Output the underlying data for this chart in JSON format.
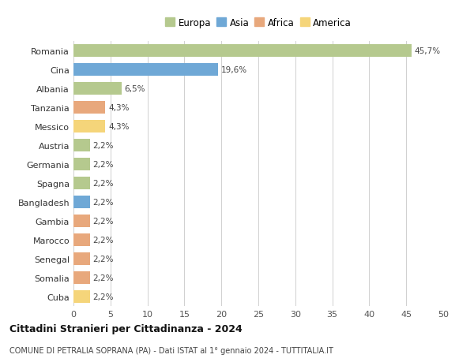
{
  "countries": [
    "Romania",
    "Cina",
    "Albania",
    "Tanzania",
    "Messico",
    "Austria",
    "Germania",
    "Spagna",
    "Bangladesh",
    "Gambia",
    "Marocco",
    "Senegal",
    "Somalia",
    "Cuba"
  ],
  "values": [
    45.7,
    19.6,
    6.5,
    4.3,
    4.3,
    2.2,
    2.2,
    2.2,
    2.2,
    2.2,
    2.2,
    2.2,
    2.2,
    2.2
  ],
  "labels": [
    "45,7%",
    "19,6%",
    "6,5%",
    "4,3%",
    "4,3%",
    "2,2%",
    "2,2%",
    "2,2%",
    "2,2%",
    "2,2%",
    "2,2%",
    "2,2%",
    "2,2%",
    "2,2%"
  ],
  "colors": [
    "#b5c98e",
    "#6fa8d6",
    "#b5c98e",
    "#e8a87c",
    "#f5d57a",
    "#b5c98e",
    "#b5c98e",
    "#b5c98e",
    "#6fa8d6",
    "#e8a87c",
    "#e8a87c",
    "#e8a87c",
    "#e8a87c",
    "#f5d57a"
  ],
  "legend_labels": [
    "Europa",
    "Asia",
    "Africa",
    "America"
  ],
  "legend_colors": [
    "#b5c98e",
    "#6fa8d6",
    "#e8a87c",
    "#f5d57a"
  ],
  "title1": "Cittadini Stranieri per Cittadinanza - 2024",
  "title2": "COMUNE DI PETRALIA SOPRANA (PA) - Dati ISTAT al 1° gennaio 2024 - TUTTITALIA.IT",
  "xlim": [
    0,
    50
  ],
  "xticks": [
    0,
    5,
    10,
    15,
    20,
    25,
    30,
    35,
    40,
    45,
    50
  ],
  "background_color": "#ffffff",
  "grid_color": "#d0d0d0"
}
